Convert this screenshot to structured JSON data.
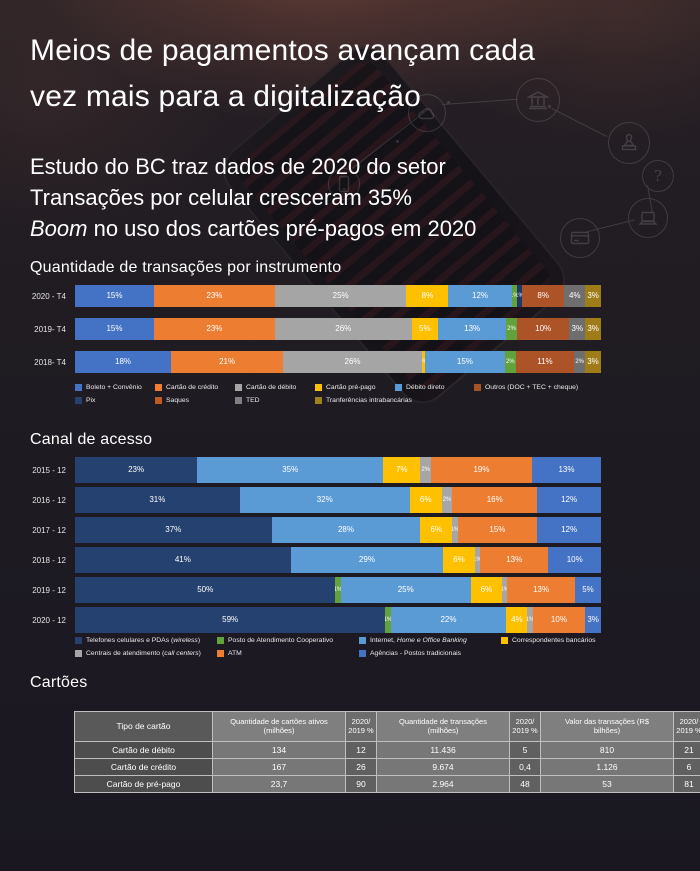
{
  "header": {
    "title_lines": [
      "Meios de pagamentos avançam cada",
      "vez mais para a digitalização"
    ],
    "subtitle_line1": "Estudo do BC traz dados de 2020 do setor",
    "subtitle_line2": "Transações por celular cresceram 35%",
    "subtitle_line3_italic": "Boom",
    "subtitle_line3_rest": " no uso dos cartões pré-pagos em 2020"
  },
  "sections": {
    "instruments_title": "Quantidade de transações por instrumento",
    "channels_title": "Canal de acesso",
    "cards_title": "Cartões"
  },
  "chart_data": [
    {
      "type": "bar",
      "stacked": true,
      "orientation": "horizontal",
      "grid": false,
      "unit": "%",
      "xlim": [
        0,
        100
      ],
      "title": "Quantidade de transações por instrumento",
      "categories": [
        "2020 - T4",
        "2019- T4",
        "2018- T4"
      ],
      "series": [
        {
          "name": "Boleto + Convênio",
          "color": "#4472C4",
          "values": [
            15,
            15,
            18
          ]
        },
        {
          "name": "Cartão de crédito",
          "color": "#ED7D31",
          "values": [
            23,
            23,
            21
          ]
        },
        {
          "name": "Cartão de débito",
          "color": "#A5A5A5",
          "values": [
            25,
            26,
            26
          ]
        },
        {
          "name": "Cartão pré-pago",
          "color": "#FFC000",
          "values": [
            8,
            5,
            0
          ]
        },
        {
          "name": "Débito direto",
          "color": "#5B9BD5",
          "values": [
            12,
            13,
            15
          ]
        },
        {
          "name": "Outros (DOC + TEC + cheque)",
          "color": "#62A23C",
          "values": [
            1,
            2,
            2
          ]
        },
        {
          "name": "Pix",
          "color": "#1F3864",
          "values": [
            1,
            null,
            null
          ]
        },
        {
          "name": "Saques",
          "color": "#AC5327",
          "values": [
            8,
            10,
            11
          ]
        },
        {
          "name": "TED",
          "color": "#6E6E6E",
          "values": [
            4,
            3,
            2
          ]
        },
        {
          "name": "Tranferências intrabancárias",
          "color": "#9E7D18",
          "values": [
            3,
            3,
            3
          ]
        }
      ],
      "legend": {
        "position": "bottom",
        "items": [
          {
            "pre": "Boleto + Convênio",
            "color": "#4472C4"
          },
          {
            "pre": "Cartão de crédito",
            "color": "#ED7D31"
          },
          {
            "pre": "Cartão de débito",
            "color": "#A5A5A5"
          },
          {
            "pre": "Cartão pré-pago",
            "color": "#FFC000"
          },
          {
            "pre": "Débito direto",
            "color": "#5B9BD5"
          },
          {
            "pre": "Outros (DOC + TEC + cheque)",
            "color": "#A5542A"
          },
          {
            "pre": "Pix",
            "color": "#24416F"
          },
          {
            "pre": "Saques",
            "color": "#C05A1E"
          },
          {
            "pre": "TED",
            "color": "#808080"
          },
          {
            "pre": "Tranferências intrabancárias",
            "color": "#A08018"
          }
        ]
      }
    },
    {
      "type": "bar",
      "stacked": true,
      "orientation": "horizontal",
      "grid": false,
      "unit": "%",
      "xlim": [
        0,
        100
      ],
      "title": "Canal de acesso",
      "categories": [
        "2015 - 12",
        "2016 - 12",
        "2017 - 12",
        "2018 - 12",
        "2019 - 12",
        "2020 - 12"
      ],
      "series": [
        {
          "name": "Telefones celulares e PDAs (wireless)",
          "color": "#24416F",
          "values": [
            23,
            31,
            37,
            41,
            50,
            59
          ]
        },
        {
          "name": "Posto de Atendimento Cooperativo",
          "color": "#62A23C",
          "values": [
            null,
            null,
            null,
            null,
            1,
            1
          ]
        },
        {
          "name": "Internet, Home e Office Banking",
          "color": "#5B9BD5",
          "values": [
            35,
            32,
            28,
            29,
            25,
            22
          ]
        },
        {
          "name": "Correspondentes bancários",
          "color": "#FFC000",
          "values": [
            7,
            6,
            6,
            6,
            6,
            4
          ]
        },
        {
          "name": "Centrais de atendimento (call centers)",
          "color": "#A6A6A6",
          "values": [
            2,
            2,
            1,
            1,
            1,
            1
          ]
        },
        {
          "name": "ATM",
          "color": "#ED7D31",
          "values": [
            19,
            16,
            15,
            13,
            13,
            10
          ]
        },
        {
          "name": "Agências - Postos tradicionais",
          "color": "#4472C4",
          "values": [
            13,
            12,
            12,
            10,
            5,
            3
          ]
        }
      ],
      "legend": {
        "position": "bottom",
        "items": [
          {
            "pre": "Telefones celulares e PDAs (",
            "it": "wireless",
            "post": ")",
            "color": "#24416F"
          },
          {
            "pre": "Posto de Atendimento Cooperativo",
            "color": "#62A23C"
          },
          {
            "pre": "Internet, ",
            "it": "Home e Office Banking",
            "color": "#5B9BD5"
          },
          {
            "pre": "Correspondentes bancários",
            "color": "#FFC000"
          },
          {
            "pre": "Centrais de atendimento (",
            "it": "call centers",
            "post": ")",
            "color": "#A6A6A6"
          },
          {
            "pre": "ATM",
            "color": "#ED7D31"
          },
          {
            "pre": "Agências - Postos tradicionais",
            "color": "#4472C4"
          }
        ]
      }
    },
    {
      "type": "table",
      "title": "Cartões",
      "headers": [
        "Tipo de cartão",
        "Quantidade de cartões ativos (milhões)",
        "2020/ 2019 %",
        "Quantidade de transações (milhões)",
        "2020/ 2019 %",
        "Valor das transações (R$ bilhões)",
        "2020/ 2019 %"
      ],
      "rows": [
        [
          "Cartão de débito",
          "134",
          "12",
          "11.436",
          "5",
          "810",
          "21"
        ],
        [
          "Cartão de crédito",
          "167",
          "26",
          "9.674",
          "0,4",
          "1.126",
          "6"
        ],
        [
          "Cartão de pré-pago",
          "23,7",
          "90",
          "2.964",
          "48",
          "53",
          "81"
        ]
      ]
    }
  ]
}
